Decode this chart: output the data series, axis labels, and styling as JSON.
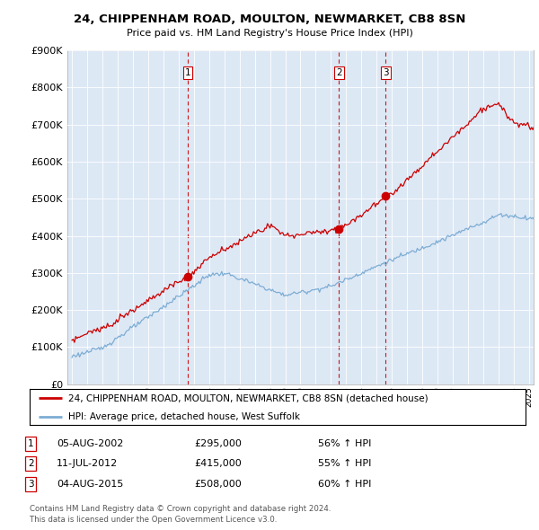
{
  "title": "24, CHIPPENHAM ROAD, MOULTON, NEWMARKET, CB8 8SN",
  "subtitle": "Price paid vs. HM Land Registry's House Price Index (HPI)",
  "legend_line1": "24, CHIPPENHAM ROAD, MOULTON, NEWMARKET, CB8 8SN (detached house)",
  "legend_line2": "HPI: Average price, detached house, West Suffolk",
  "footer1": "Contains HM Land Registry data © Crown copyright and database right 2024.",
  "footer2": "This data is licensed under the Open Government Licence v3.0.",
  "sales": [
    {
      "num": 1,
      "date": "05-AUG-2002",
      "price": "£295,000",
      "pct": "56% ↑ HPI",
      "year": 2002.6
    },
    {
      "num": 2,
      "date": "11-JUL-2012",
      "price": "£415,000",
      "pct": "55% ↑ HPI",
      "year": 2012.53
    },
    {
      "num": 3,
      "date": "04-AUG-2015",
      "price": "£508,000",
      "pct": "60% ↑ HPI",
      "year": 2015.6
    }
  ],
  "red_color": "#cc0000",
  "blue_color": "#7dadd4",
  "dashed_color": "#cc0000",
  "chart_bg": "#dde8f5",
  "ylim": [
    0,
    900000
  ],
  "xlim_start": 1994.7,
  "xlim_end": 2025.3,
  "background": "#ffffff",
  "grid_color": "#ffffff"
}
